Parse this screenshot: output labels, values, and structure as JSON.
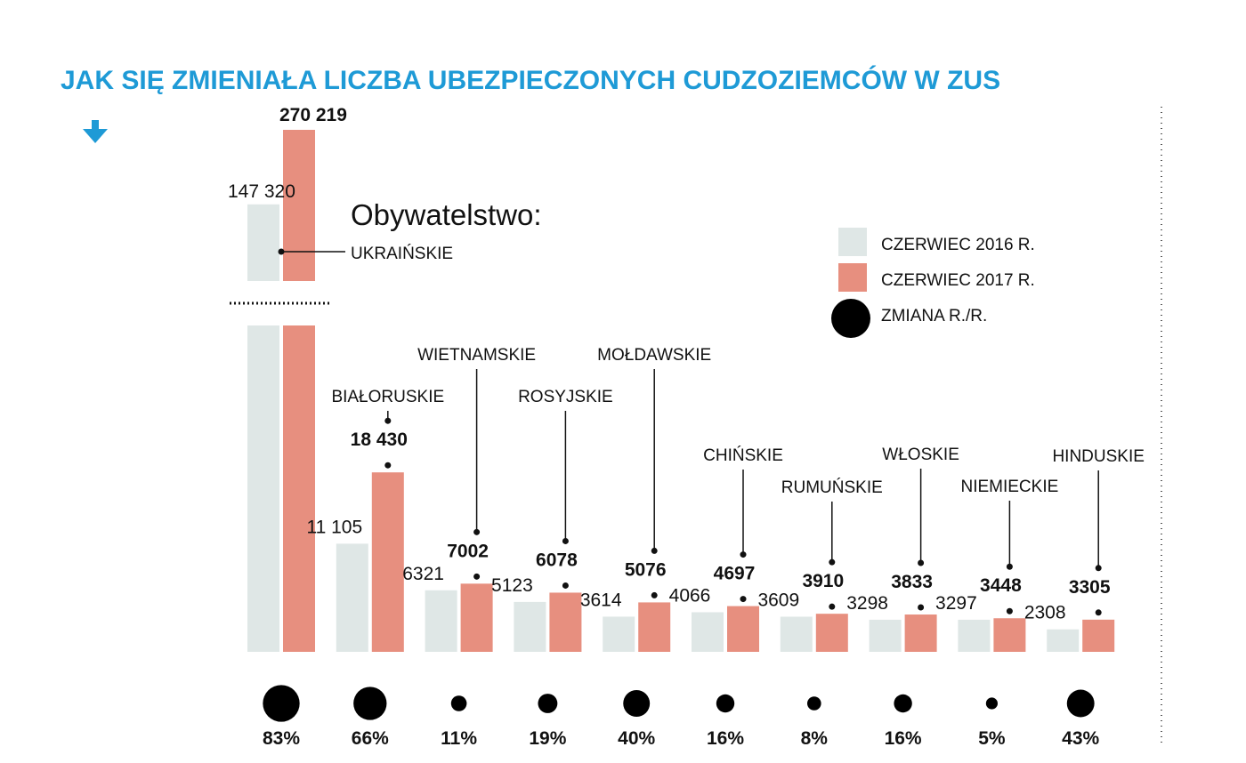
{
  "colors": {
    "title": "#1e9ad6",
    "bar_2016": "#dfe7e6",
    "bar_2017": "#e78f7f",
    "circle": "#000000",
    "text": "#111111"
  },
  "chart_data": {
    "type": "bar",
    "title": "JAK SIĘ ZMIENIAŁA LICZBA UBEZPIECZONYCH CUDZOZIEMCÓW W ZUS",
    "subtitle": "Obywatelstwo:",
    "axis_break": "after first category (Ukrainian bars truncated)",
    "legend": {
      "position": "right",
      "items": [
        {
          "label": "CZERWIEC 2016 R.",
          "kind": "bar_2016"
        },
        {
          "label": "CZERWIEC 2017 R.",
          "kind": "bar_2017"
        },
        {
          "label": "ZMIANA R./R.",
          "kind": "circle"
        }
      ]
    },
    "categories": [
      {
        "name": "UKRAIŃSKIE",
        "v2016": 147320,
        "v2016_label": "147 320",
        "v2017": 270219,
        "v2017_label": "270 219",
        "change": 83,
        "change_label": "83%"
      },
      {
        "name": "BIAŁORUSKIE",
        "v2016": 11105,
        "v2016_label": "11 105",
        "v2017": 18430,
        "v2017_label": "18 430",
        "change": 66,
        "change_label": "66%"
      },
      {
        "name": "WIETNAMSKIE",
        "v2016": 6321,
        "v2016_label": "6321",
        "v2017": 7002,
        "v2017_label": "7002",
        "change": 11,
        "change_label": "11%"
      },
      {
        "name": "ROSYJSKIE",
        "v2016": 5123,
        "v2016_label": "5123",
        "v2017": 6078,
        "v2017_label": "6078",
        "change": 19,
        "change_label": "19%"
      },
      {
        "name": "MOŁDAWSKIE",
        "v2016": 3614,
        "v2016_label": "3614",
        "v2017": 5076,
        "v2017_label": "5076",
        "change": 40,
        "change_label": "40%"
      },
      {
        "name": "CHIŃSKIE",
        "v2016": 4066,
        "v2016_label": "4066",
        "v2017": 4697,
        "v2017_label": "4697",
        "change": 16,
        "change_label": "16%"
      },
      {
        "name": "RUMUŃSKIE",
        "v2016": 3609,
        "v2016_label": "3609",
        "v2017": 3910,
        "v2017_label": "3910",
        "change": 8,
        "change_label": "8%"
      },
      {
        "name": "WŁOSKIE",
        "v2016": 3298,
        "v2016_label": "3298",
        "v2017": 3833,
        "v2017_label": "3833",
        "change": 16,
        "change_label": "16%"
      },
      {
        "name": "NIEMIECKIE",
        "v2016": 3297,
        "v2016_label": "3297",
        "v2017": 3448,
        "v2017_label": "3448",
        "change": 5,
        "change_label": "5%"
      },
      {
        "name": "HINDUSKIE",
        "v2016": 2308,
        "v2016_label": "2308",
        "v2017": 3305,
        "v2017_label": "3305",
        "change": 43,
        "change_label": "43%"
      }
    ]
  }
}
